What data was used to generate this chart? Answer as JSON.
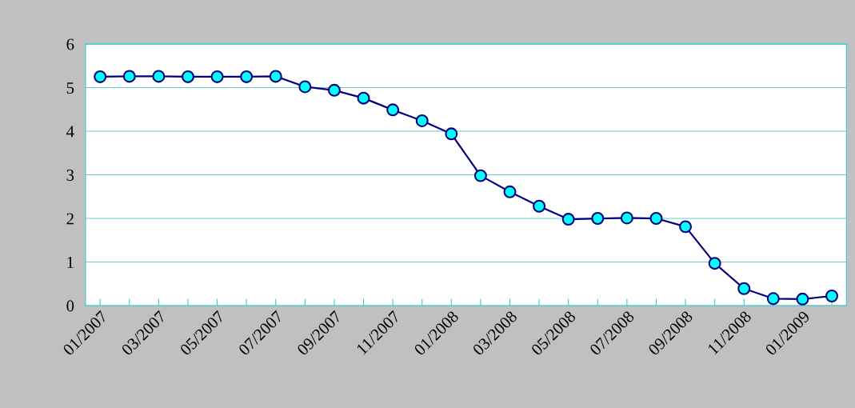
{
  "chart_data": {
    "type": "line",
    "categories": [
      "01/2007",
      null,
      "03/2007",
      null,
      "05/2007",
      null,
      "07/2007",
      null,
      "09/2007",
      null,
      "11/2007",
      null,
      "01/2008",
      null,
      "03/2008",
      null,
      "05/2008",
      null,
      "07/2008",
      null,
      "09/2008",
      null,
      "11/2008",
      null,
      "01/2009",
      null
    ],
    "series": [
      {
        "color": "#000080",
        "values": [
          5.25,
          5.26,
          5.26,
          5.25,
          5.25,
          5.25,
          5.26,
          5.02,
          4.94,
          4.76,
          4.49,
          4.24,
          3.94,
          2.98,
          2.61,
          2.28,
          1.98,
          2.0,
          2.01,
          2.0,
          1.81,
          0.97,
          0.39,
          0.16,
          0.15,
          0.22
        ]
      }
    ],
    "ylim": [
      0,
      6
    ],
    "yticks": [
      0,
      1,
      2,
      3,
      4,
      5,
      6
    ],
    "grid": "y",
    "marker": "circle",
    "line_style": "solid"
  }
}
